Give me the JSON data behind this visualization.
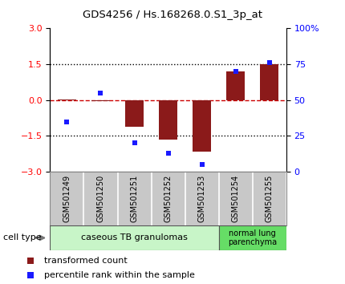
{
  "title": "GDS4256 / Hs.168268.0.S1_3p_at",
  "samples": [
    "GSM501249",
    "GSM501250",
    "GSM501251",
    "GSM501252",
    "GSM501253",
    "GSM501254",
    "GSM501255"
  ],
  "transformed_count": [
    0.02,
    -0.05,
    -1.1,
    -1.65,
    -2.15,
    1.2,
    1.5
  ],
  "percentile_rank": [
    35,
    55,
    20,
    13,
    5,
    70,
    76
  ],
  "ylim_left": [
    -3,
    3
  ],
  "ylim_right": [
    0,
    100
  ],
  "yticks_left": [
    -3,
    -1.5,
    0,
    1.5,
    3
  ],
  "yticks_right": [
    0,
    25,
    50,
    75,
    100
  ],
  "ytick_labels_right": [
    "0",
    "25",
    "50",
    "75",
    "100%"
  ],
  "hlines": [
    {
      "y": 1.5,
      "style": "dotted",
      "color": "black"
    },
    {
      "y": 0.0,
      "style": "dashed",
      "color": "#cc0000"
    },
    {
      "y": -1.5,
      "style": "dotted",
      "color": "black"
    }
  ],
  "bar_color": "#8B1A1A",
  "dot_color": "#1a1aff",
  "cell_type_groups": [
    {
      "label": "caseous TB granulomas",
      "n": 5,
      "color": "#c8f5c8"
    },
    {
      "label": "normal lung\nparenchyma",
      "n": 2,
      "color": "#66dd66"
    }
  ],
  "legend_items": [
    {
      "color": "#8B1A1A",
      "label": "transformed count"
    },
    {
      "color": "#1a1aff",
      "label": "percentile rank within the sample"
    }
  ],
  "cell_type_label": "cell type",
  "xlabel_box_color": "#c8c8c8",
  "xlabel_box_border": "#888888",
  "background_color": "#ffffff"
}
